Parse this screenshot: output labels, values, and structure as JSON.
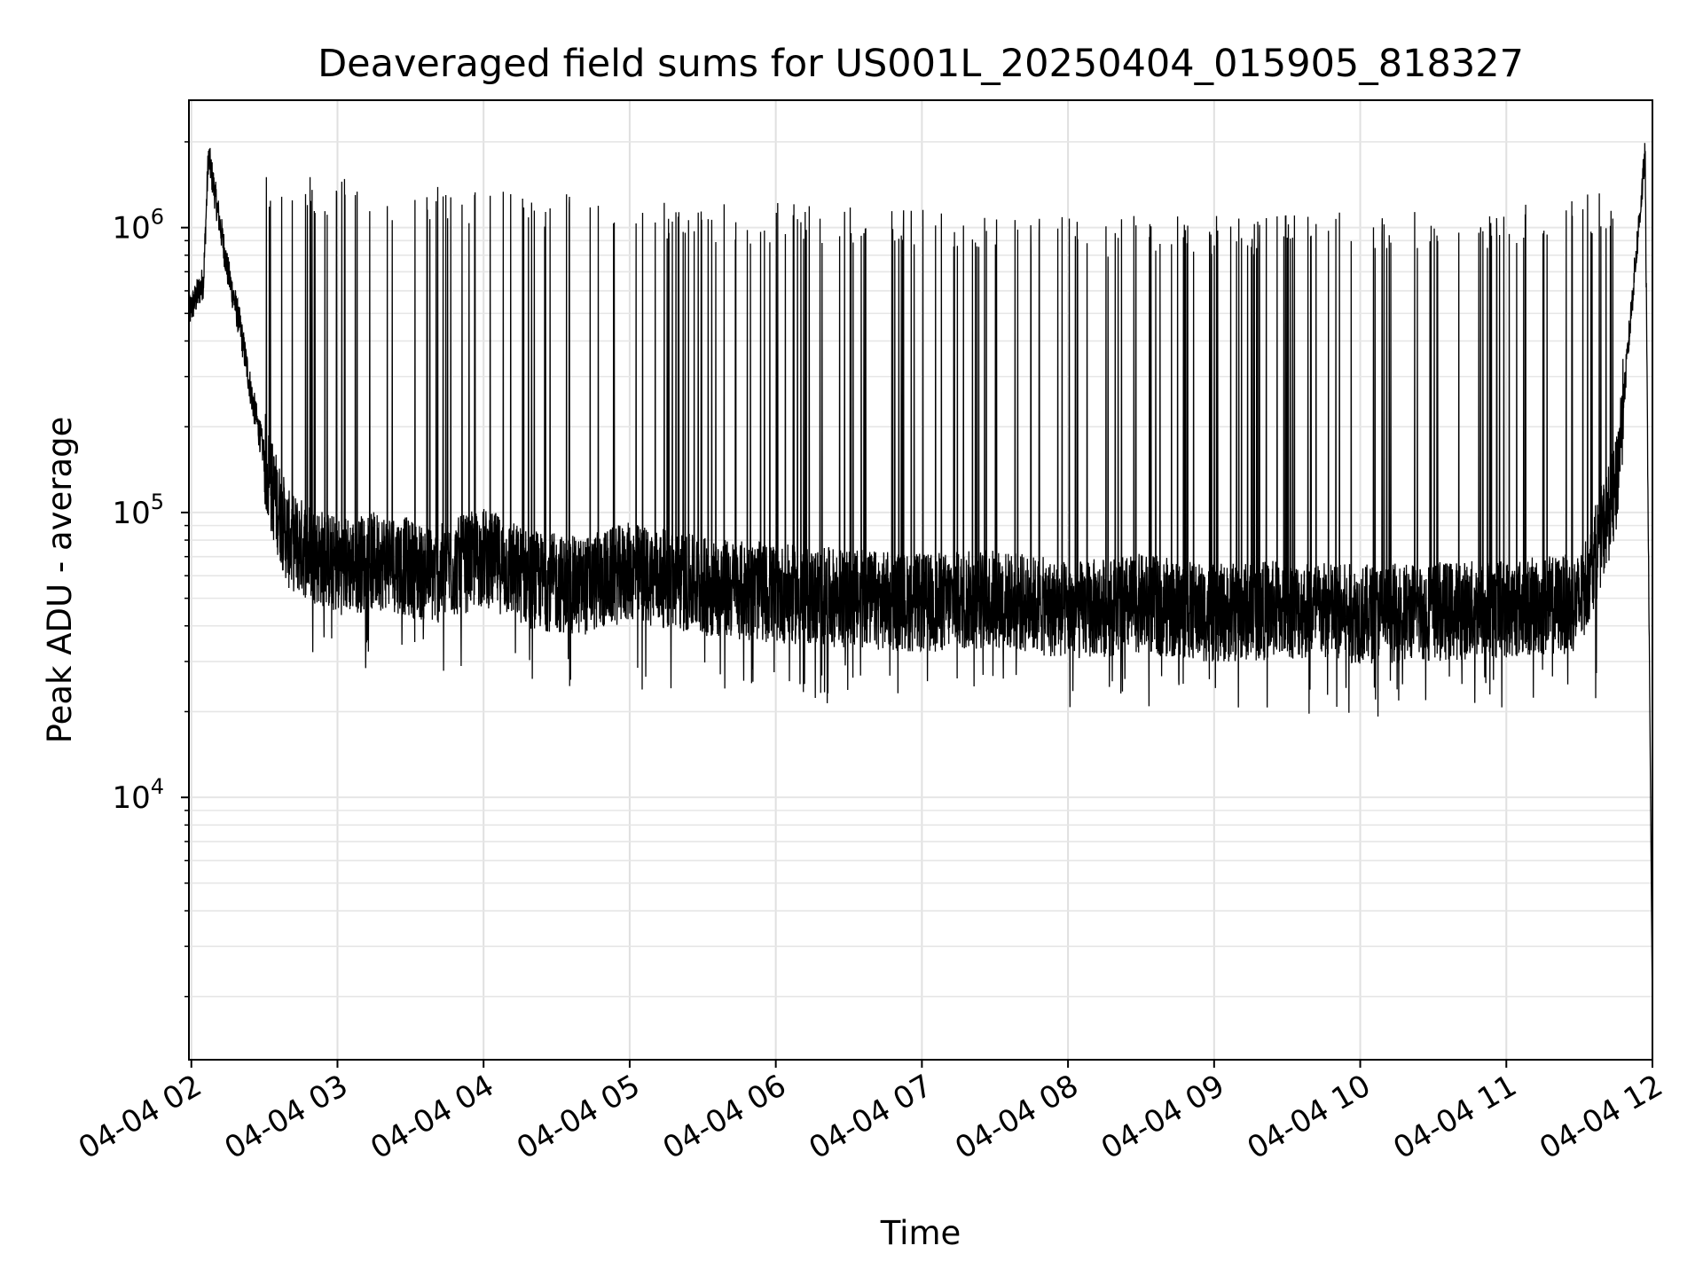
{
  "chart_data": {
    "type": "line",
    "title": "Deaveraged field sums for US001L_20250404_015905_818327",
    "xlabel": "Time",
    "ylabel": "Peak ADU - average",
    "yscale": "log",
    "xlim": [
      "2025-04-04 01:59",
      "2025-04-04 12:00"
    ],
    "ylim": [
      1200,
      2800000
    ],
    "grid": true,
    "legend": "none",
    "line_color": "#000000",
    "x_ticks": [
      "04-04 02",
      "04-04 03",
      "04-04 04",
      "04-04 05",
      "04-04 06",
      "04-04 07",
      "04-04 08",
      "04-04 09",
      "04-04 10",
      "04-04 11",
      "04-04 12"
    ],
    "y_ticks": [
      {
        "base": "10",
        "exp": "4",
        "value": 10000
      },
      {
        "base": "10",
        "exp": "5",
        "value": 100000
      },
      {
        "base": "10",
        "exp": "6",
        "value": 1000000
      }
    ],
    "series": [
      {
        "x": [
          "2025-04-04 01:59",
          "2025-04-04 02:05",
          "2025-04-04 02:07",
          "2025-04-04 02:15",
          "2025-04-04 02:20",
          "2025-04-04 02:25",
          "2025-04-04 02:32",
          "2025-04-04 02:40",
          "2025-04-04 03:00",
          "2025-04-04 03:20",
          "2025-04-04 03:40",
          "2025-04-04 04:00",
          "2025-04-04 04:20",
          "2025-04-04 04:40",
          "2025-04-04 05:00",
          "2025-04-04 05:30",
          "2025-04-04 06:00",
          "2025-04-04 06:30",
          "2025-04-04 07:00",
          "2025-04-04 07:30",
          "2025-04-04 08:00",
          "2025-04-04 08:30",
          "2025-04-04 09:00",
          "2025-04-04 09:30",
          "2025-04-04 10:00",
          "2025-04-04 10:30",
          "2025-04-04 11:00",
          "2025-04-04 11:30",
          "2025-04-04 11:45",
          "2025-04-04 11:52",
          "2025-04-04 11:57",
          "2025-04-04 12:00"
        ],
        "y": [
          500000,
          650000,
          1800000,
          700000,
          450000,
          250000,
          130000,
          80000,
          65000,
          68000,
          60000,
          70000,
          58000,
          55000,
          62000,
          55000,
          52000,
          50000,
          48000,
          50000,
          45000,
          48000,
          44000,
          46000,
          44000,
          45000,
          46000,
          48000,
          120000,
          600000,
          1800000,
          1700
        ],
        "spike_peaks": [
          1500000,
          1400000,
          1300000,
          1200000,
          1150000,
          1100000,
          1050000,
          1050000,
          1100000,
          1100000,
          1300000
        ],
        "dip_lows": [
          35000,
          32000,
          28000,
          27000,
          25000,
          26000,
          24000,
          23000,
          22000,
          24000,
          26000
        ]
      }
    ]
  }
}
